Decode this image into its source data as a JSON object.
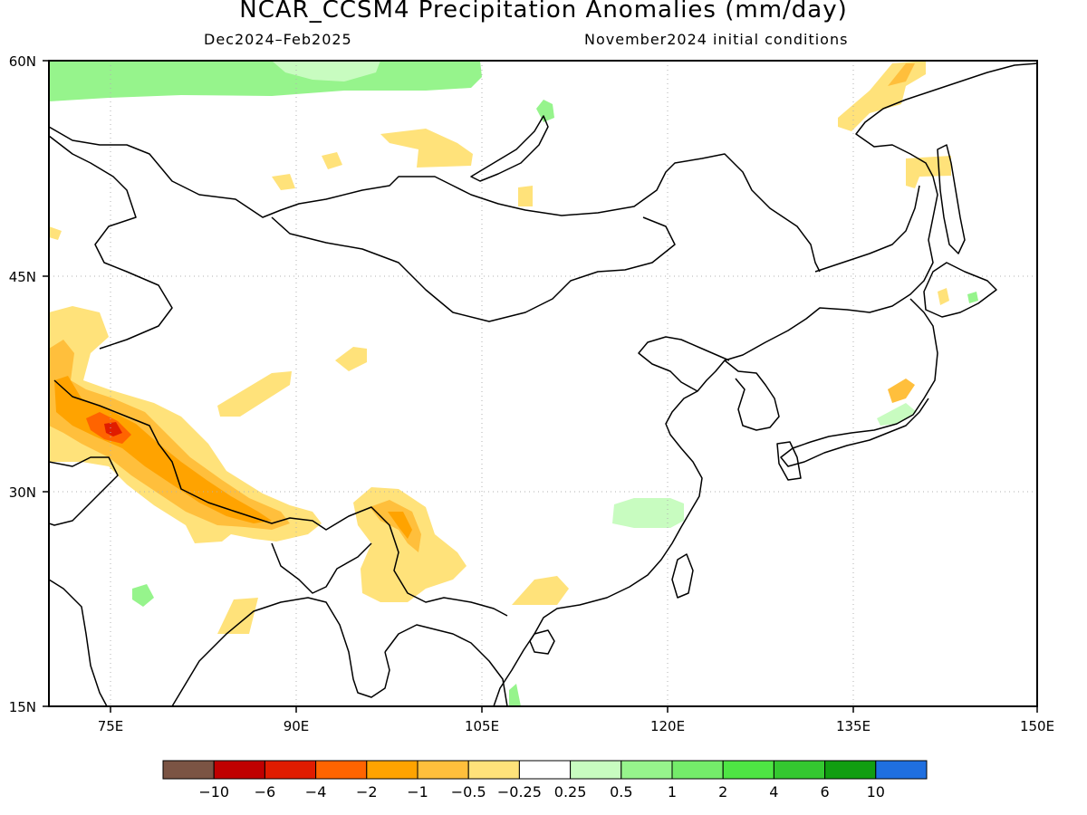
{
  "title": "NCAR_CCSM4 Precipitation Anomalies (mm/day)",
  "period": "Dec2024–Feb2025",
  "initial_conditions": "November2024 initial conditions",
  "map": {
    "lon_range": [
      70,
      150
    ],
    "lat_range": [
      15,
      60
    ],
    "lat_labels": [
      "60N",
      "45N",
      "30N",
      "15N"
    ],
    "lon_labels": [
      "75E",
      "90E",
      "105E",
      "120E",
      "135E",
      "150E"
    ],
    "grid": true
  },
  "colorbar": {
    "colors": [
      "#7b5444",
      "#c00000",
      "#e01c00",
      "#ff6400",
      "#ffa300",
      "#ffbf3c",
      "#ffe27a",
      "#ffffff",
      "#c8fcc0",
      "#96f48c",
      "#74ec6a",
      "#4ee544",
      "#34c830",
      "#119e11",
      "#1f6fe0"
    ],
    "labels": [
      "−10",
      "−6",
      "−4",
      "−2",
      "−1",
      "−0.5",
      "−0.25",
      "0.25",
      "0.5",
      "1",
      "2",
      "4",
      "6",
      "10"
    ]
  }
}
